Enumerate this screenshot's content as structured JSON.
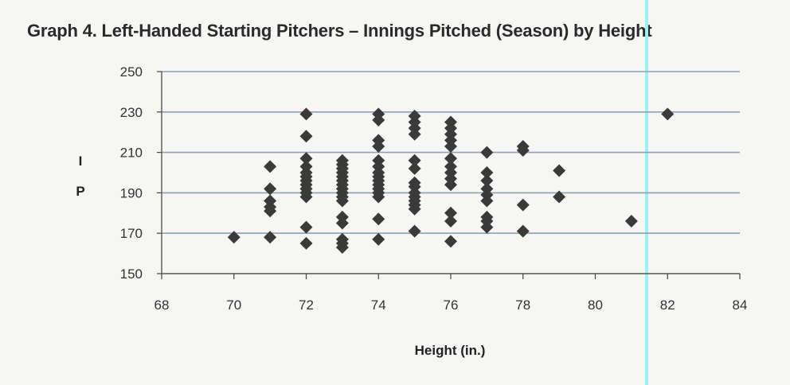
{
  "chart_data": {
    "type": "scatter",
    "title": "Graph 4. Left-Handed Starting Pitchers – Innings Pitched (Season) by Height",
    "xlabel": "Height (in.)",
    "ylabel": "I P",
    "xlim": [
      68,
      84
    ],
    "ylim": [
      150,
      250
    ],
    "xticks": [
      68,
      70,
      72,
      74,
      76,
      78,
      80,
      82,
      84
    ],
    "yticks": [
      150,
      170,
      190,
      210,
      230,
      250
    ],
    "grid": "horizontal",
    "legend": "none",
    "marker": "diamond",
    "marker_color": "#3a3a3a",
    "grid_color": "#8f9fb4",
    "points": [
      [
        70,
        168
      ],
      [
        71,
        203
      ],
      [
        71,
        192
      ],
      [
        71,
        186
      ],
      [
        71,
        183
      ],
      [
        71,
        181
      ],
      [
        71,
        168
      ],
      [
        72,
        229
      ],
      [
        72,
        218
      ],
      [
        72,
        207
      ],
      [
        72,
        203
      ],
      [
        72,
        200
      ],
      [
        72,
        198
      ],
      [
        72,
        196
      ],
      [
        72,
        194
      ],
      [
        72,
        192
      ],
      [
        72,
        190
      ],
      [
        72,
        188
      ],
      [
        72,
        173
      ],
      [
        72,
        165
      ],
      [
        73,
        206
      ],
      [
        73,
        204
      ],
      [
        73,
        202
      ],
      [
        73,
        200
      ],
      [
        73,
        198
      ],
      [
        73,
        196
      ],
      [
        73,
        194
      ],
      [
        73,
        192
      ],
      [
        73,
        190
      ],
      [
        73,
        188
      ],
      [
        73,
        186
      ],
      [
        73,
        178
      ],
      [
        73,
        175
      ],
      [
        73,
        167
      ],
      [
        73,
        165
      ],
      [
        73,
        163
      ],
      [
        74,
        229
      ],
      [
        74,
        226
      ],
      [
        74,
        216
      ],
      [
        74,
        213
      ],
      [
        74,
        206
      ],
      [
        74,
        203
      ],
      [
        74,
        200
      ],
      [
        74,
        198
      ],
      [
        74,
        196
      ],
      [
        74,
        194
      ],
      [
        74,
        192
      ],
      [
        74,
        190
      ],
      [
        74,
        188
      ],
      [
        74,
        177
      ],
      [
        74,
        167
      ],
      [
        75,
        228
      ],
      [
        75,
        225
      ],
      [
        75,
        222
      ],
      [
        75,
        219
      ],
      [
        75,
        206
      ],
      [
        75,
        202
      ],
      [
        75,
        195
      ],
      [
        75,
        193
      ],
      [
        75,
        190
      ],
      [
        75,
        188
      ],
      [
        75,
        186
      ],
      [
        75,
        184
      ],
      [
        75,
        182
      ],
      [
        75,
        171
      ],
      [
        76,
        225
      ],
      [
        76,
        222
      ],
      [
        76,
        219
      ],
      [
        76,
        216
      ],
      [
        76,
        213
      ],
      [
        76,
        207
      ],
      [
        76,
        203
      ],
      [
        76,
        200
      ],
      [
        76,
        197
      ],
      [
        76,
        194
      ],
      [
        76,
        180
      ],
      [
        76,
        176
      ],
      [
        76,
        166
      ],
      [
        77,
        210
      ],
      [
        77,
        200
      ],
      [
        77,
        196
      ],
      [
        77,
        192
      ],
      [
        77,
        189
      ],
      [
        77,
        186
      ],
      [
        77,
        178
      ],
      [
        77,
        176
      ],
      [
        77,
        173
      ],
      [
        78,
        213
      ],
      [
        78,
        211
      ],
      [
        78,
        184
      ],
      [
        78,
        171
      ],
      [
        79,
        201
      ],
      [
        79,
        188
      ],
      [
        81,
        176
      ],
      [
        82,
        229
      ]
    ]
  }
}
